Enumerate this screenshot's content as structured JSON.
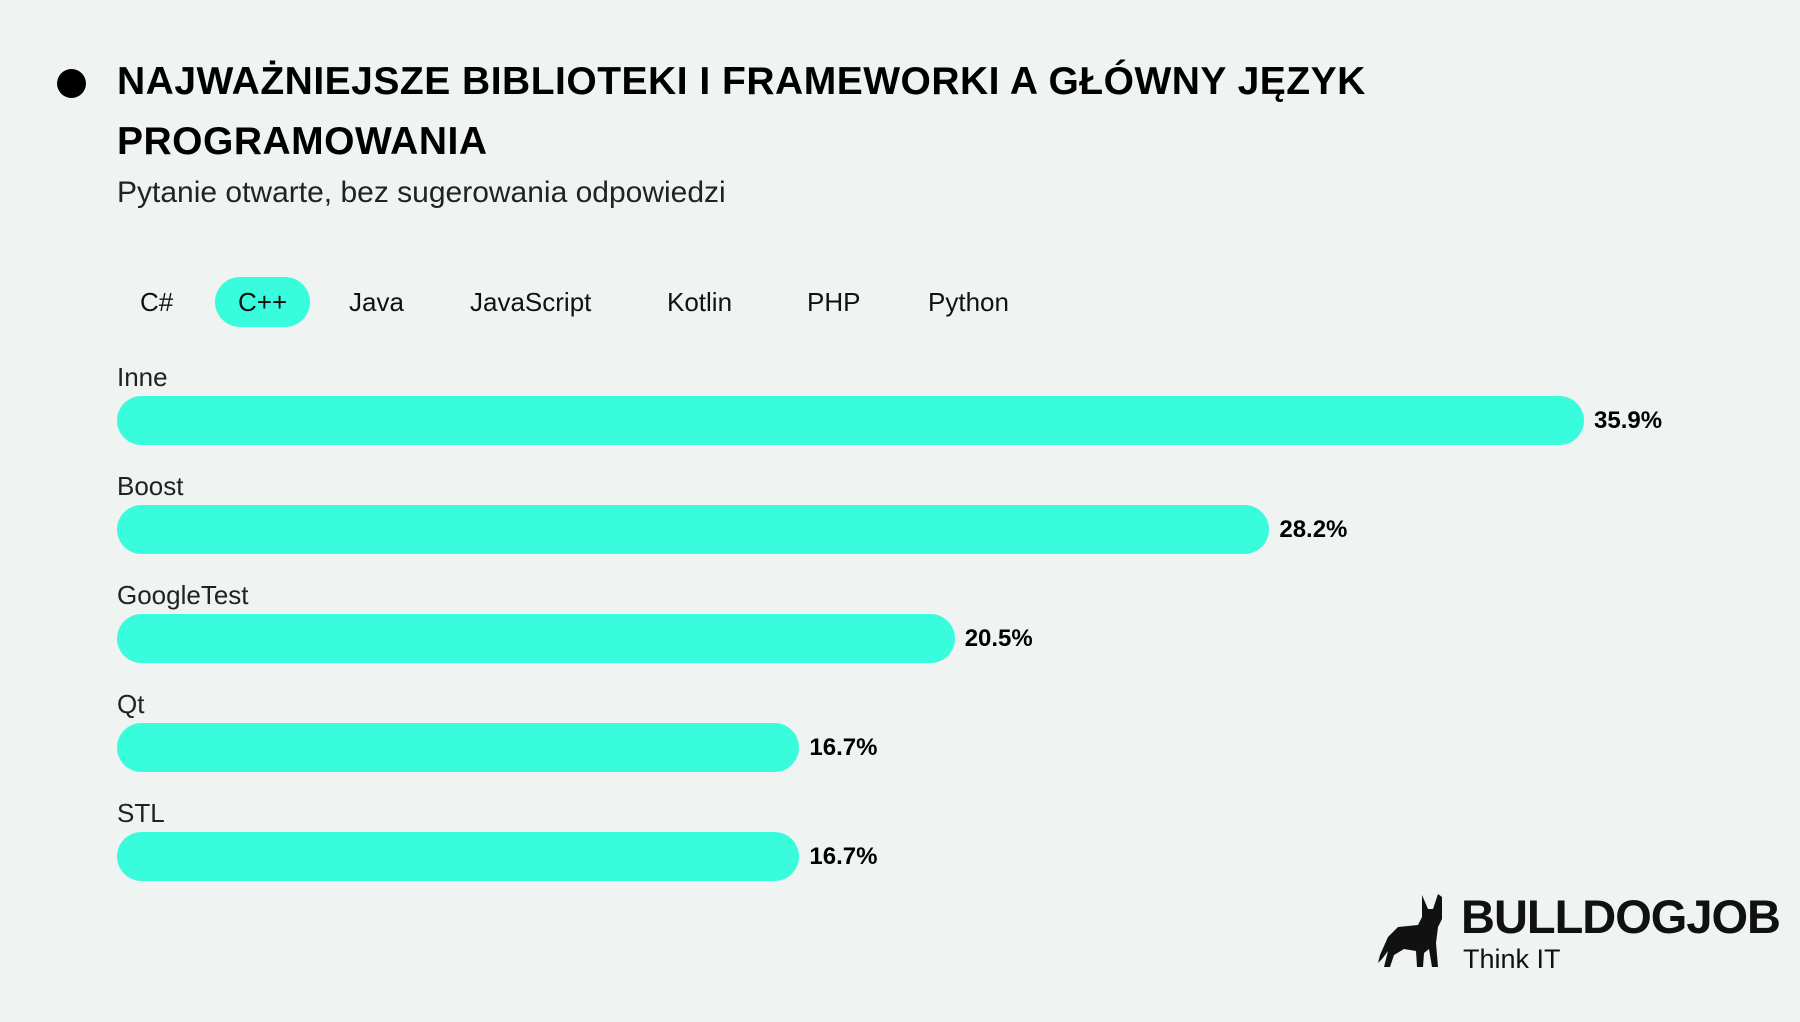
{
  "header": {
    "title": "NAJWAŻNIEJSZE BIBLIOTEKI I FRAMEWORKI A GŁÓWNY JĘZYK PROGRAMOWANIA",
    "subtitle": "Pytanie otwarte, bez sugerowania odpowiedzi"
  },
  "tabs": [
    {
      "label": "C#",
      "active": false
    },
    {
      "label": "C++",
      "active": true
    },
    {
      "label": "Java",
      "active": false
    },
    {
      "label": "JavaScript",
      "active": false
    },
    {
      "label": "Kotlin",
      "active": false
    },
    {
      "label": "PHP",
      "active": false
    },
    {
      "label": "Python",
      "active": false
    }
  ],
  "chart_data": {
    "type": "bar",
    "orientation": "horizontal",
    "title": "NAJWAŻNIEJSZE BIBLIOTEKI I FRAMEWORKI A GŁÓWNY JĘZYK PROGRAMOWANIA",
    "categories": [
      "Inne",
      "Boost",
      "GoogleTest",
      "Qt",
      "STL"
    ],
    "values": [
      35.9,
      28.2,
      20.5,
      16.7,
      16.7
    ],
    "value_labels": [
      "35.9%",
      "28.2%",
      "20.5%",
      "16.7%",
      "16.7%"
    ],
    "unit": "%",
    "xlim": [
      0,
      35.9
    ],
    "grid": false,
    "bar_color": "#38fcdb"
  },
  "brand": {
    "name": "BULLDOGJOB",
    "tagline": "Think IT"
  },
  "colors": {
    "accent": "#38fcdb",
    "background": "#eff4f3"
  }
}
